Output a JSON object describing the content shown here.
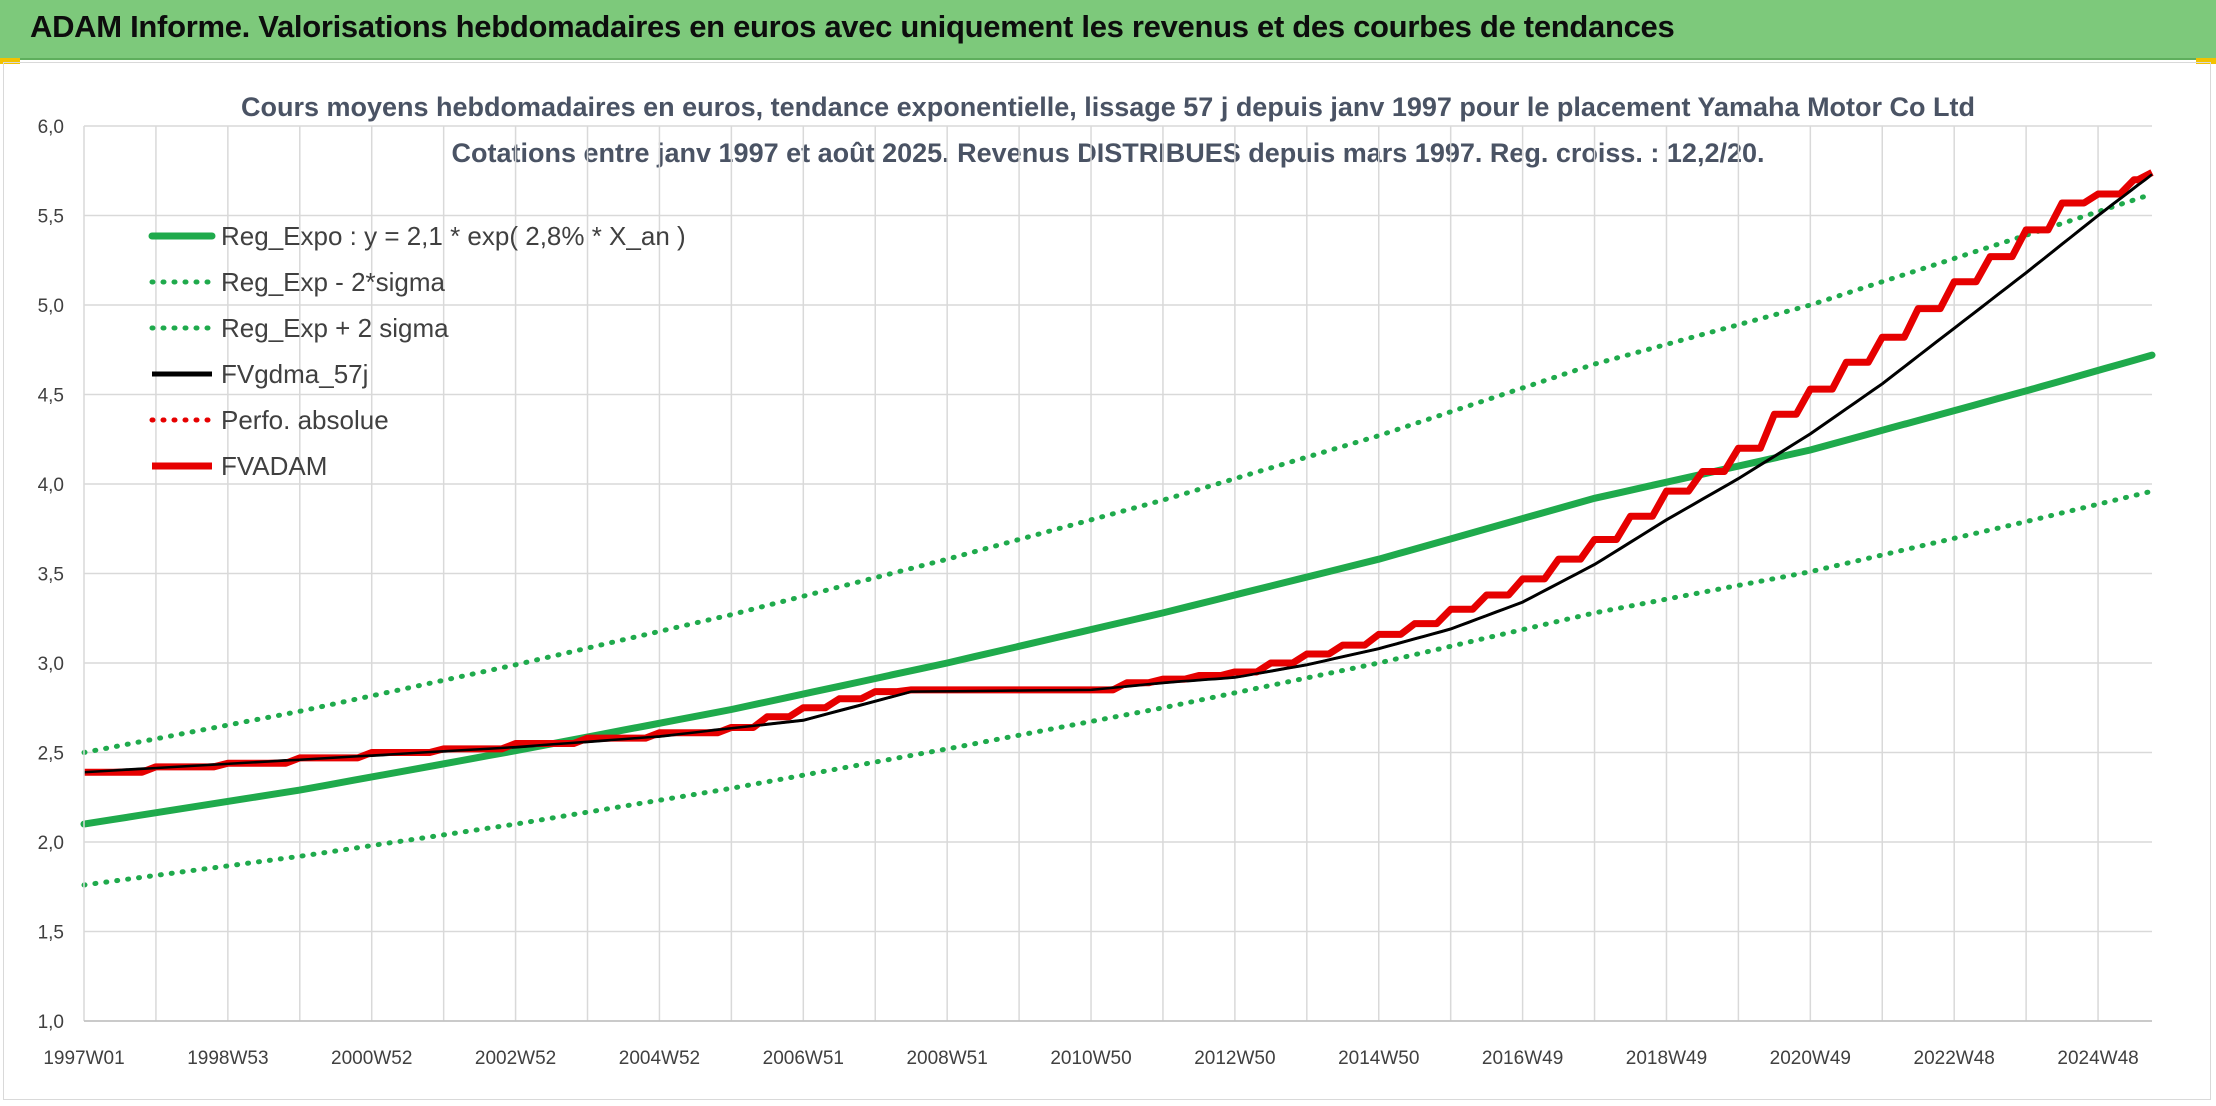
{
  "banner": {
    "title": "ADAM Informe. Valorisations hebdomadaires en euros avec uniquement les revenus et des courbes de tendances"
  },
  "colors": {
    "banner_bg": "#7dc97b",
    "trend_green": "#1faa4c",
    "adam_red": "#e60000",
    "gdma_black": "#000000",
    "grid": "#d9d9d9"
  },
  "chart_data": {
    "type": "line",
    "title": "Cours moyens hebdomadaires en euros, tendance exponentielle, lissage 57 j depuis janv 1997 pour le placement Yamaha Motor Co Ltd",
    "subtitle": "Cotations entre janv 1997 et août 2025. Revenus DISTRIBUES depuis mars 1997. Reg. croiss. : 12,2/20.",
    "xlabel": "",
    "ylabel": "",
    "ylim": [
      1.0,
      6.0
    ],
    "xlim": [
      1997.0,
      2025.75
    ],
    "y_ticks": [
      "1,0",
      "1,5",
      "2,0",
      "2,5",
      "3,0",
      "3,5",
      "4,0",
      "4,5",
      "5,0",
      "5,5",
      "6,0"
    ],
    "x_tick_labels": [
      {
        "label": "1997W01",
        "x": 1997.0
      },
      {
        "label": "1998W53",
        "x": 1999.0
      },
      {
        "label": "2000W52",
        "x": 2001.0
      },
      {
        "label": "2002W52",
        "x": 2003.0
      },
      {
        "label": "2004W52",
        "x": 2005.0
      },
      {
        "label": "2006W51",
        "x": 2007.0
      },
      {
        "label": "2008W51",
        "x": 2009.0
      },
      {
        "label": "2010W50",
        "x": 2011.0
      },
      {
        "label": "2012W50",
        "x": 2013.0
      },
      {
        "label": "2014W50",
        "x": 2015.0
      },
      {
        "label": "2016W49",
        "x": 2017.0
      },
      {
        "label": "2018W49",
        "x": 2019.0
      },
      {
        "label": "2020W49",
        "x": 2021.0
      },
      {
        "label": "2022W48",
        "x": 2023.0
      },
      {
        "label": "2024W48",
        "x": 2025.0
      }
    ],
    "grid": true,
    "legend_position": "top-left",
    "series": [
      {
        "name": "Reg_Expo : y = 2,1 * exp( 2,8% *  X_an )",
        "style": "solid-thick",
        "color": "#1faa4c",
        "x": [
          1997,
          2000,
          2003,
          2006,
          2009,
          2012,
          2015,
          2018,
          2021,
          2024,
          2025.75
        ],
        "values": [
          2.1,
          2.29,
          2.51,
          2.74,
          3.0,
          3.28,
          3.58,
          3.92,
          4.19,
          4.52,
          4.72
        ]
      },
      {
        "name": "Reg_Exp - 2*sigma",
        "style": "dotted",
        "color": "#1faa4c",
        "x": [
          1997,
          2000,
          2003,
          2006,
          2009,
          2012,
          2015,
          2018,
          2021,
          2024,
          2025.75
        ],
        "values": [
          1.76,
          1.92,
          2.1,
          2.3,
          2.52,
          2.75,
          3.0,
          3.28,
          3.51,
          3.79,
          3.96
        ]
      },
      {
        "name": "Reg_Exp + 2 sigma",
        "style": "dotted",
        "color": "#1faa4c",
        "x": [
          1997,
          2000,
          2003,
          2006,
          2009,
          2012,
          2015,
          2018,
          2021,
          2024,
          2025.75
        ],
        "values": [
          2.5,
          2.73,
          2.99,
          3.27,
          3.58,
          3.91,
          4.27,
          4.67,
          5.0,
          5.39,
          5.62
        ]
      },
      {
        "name": "FVgdma_57j",
        "style": "solid-thin",
        "color": "#000000",
        "x": [
          1997,
          2000,
          2003,
          2005,
          2007,
          2008.5,
          2011,
          2012,
          2013,
          2014,
          2015,
          2016,
          2017,
          2018,
          2019,
          2020,
          2021,
          2022,
          2023,
          2024,
          2025,
          2025.75
        ],
        "values": [
          2.39,
          2.46,
          2.53,
          2.59,
          2.68,
          2.84,
          2.85,
          2.89,
          2.92,
          2.99,
          3.08,
          3.19,
          3.34,
          3.55,
          3.8,
          4.03,
          4.28,
          4.56,
          4.87,
          5.18,
          5.5,
          5.73
        ]
      },
      {
        "name": "Perfo. absolue",
        "style": "dotted",
        "color": "#e60000",
        "x": [],
        "values": []
      },
      {
        "name": "FVADAM",
        "style": "solid-thick-steps",
        "color": "#e60000",
        "x": [
          1997,
          1998,
          1999,
          2000,
          2001,
          2002,
          2003,
          2004,
          2005,
          2006,
          2006.5,
          2007,
          2007.5,
          2008,
          2008.5,
          2011,
          2011.5,
          2012,
          2012.5,
          2013,
          2013.5,
          2014,
          2014.5,
          2015,
          2015.5,
          2016,
          2016.5,
          2017,
          2017.5,
          2018,
          2018.5,
          2019,
          2019.5,
          2020,
          2020.5,
          2021,
          2021.5,
          2022,
          2022.5,
          2023,
          2023.5,
          2024,
          2024.5,
          2025,
          2025.5,
          2025.75
        ],
        "values": [
          2.39,
          2.42,
          2.44,
          2.47,
          2.5,
          2.52,
          2.55,
          2.58,
          2.61,
          2.64,
          2.7,
          2.75,
          2.8,
          2.84,
          2.85,
          2.85,
          2.89,
          2.91,
          2.93,
          2.95,
          3.0,
          3.05,
          3.1,
          3.16,
          3.22,
          3.3,
          3.38,
          3.47,
          3.58,
          3.69,
          3.82,
          3.96,
          4.07,
          4.2,
          4.39,
          4.53,
          4.68,
          4.82,
          4.98,
          5.13,
          5.27,
          5.42,
          5.57,
          5.62,
          5.7,
          5.74
        ]
      }
    ]
  }
}
